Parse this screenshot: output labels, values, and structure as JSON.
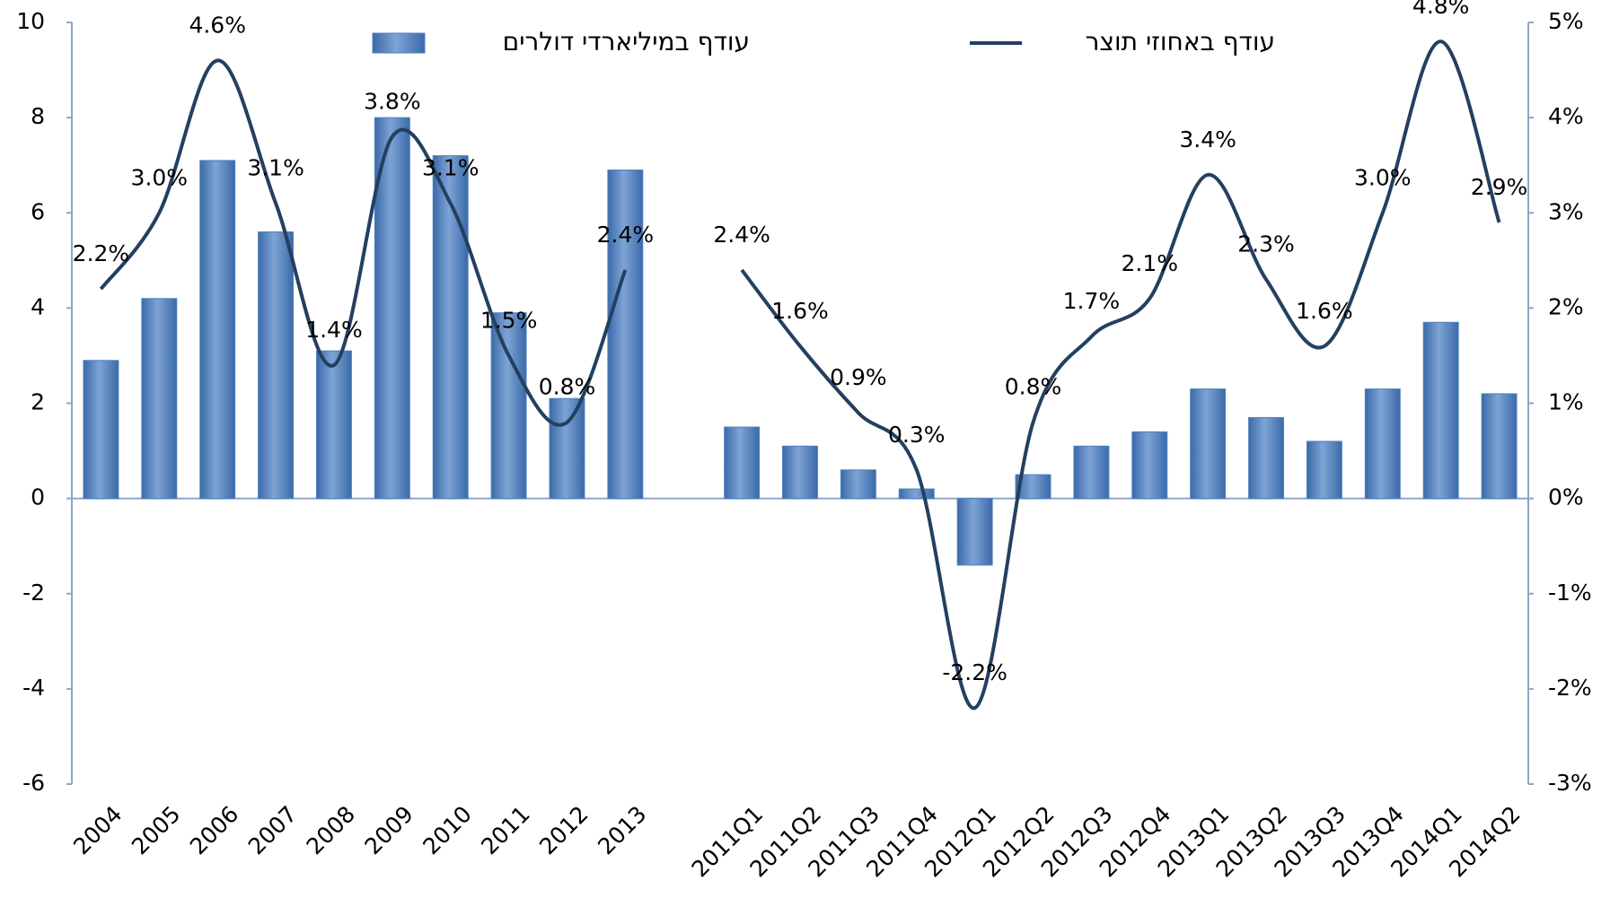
{
  "chart_data": {
    "type": "bar_line",
    "categories": [
      "2004",
      "2005",
      "2006",
      "2007",
      "2008",
      "2009",
      "2010",
      "2011",
      "2012",
      "2013",
      null,
      "2011Q1",
      "2011Q2",
      "2011Q3",
      "2011Q4",
      "2012Q1",
      "2012Q2",
      "2012Q3",
      "2012Q4",
      "2013Q1",
      "2013Q2",
      "2013Q3",
      "2013Q4",
      "2014Q1",
      "2014Q2"
    ],
    "series": [
      {
        "name": "עודף במיליארדי דולרים",
        "color": "#4f81bd",
        "type": "bar",
        "values": [
          2.9,
          4.2,
          7.1,
          5.6,
          3.1,
          8.0,
          7.2,
          3.9,
          2.1,
          6.9,
          null,
          1.5,
          1.1,
          0.6,
          0.2,
          -1.4,
          0.5,
          1.1,
          1.4,
          2.3,
          1.7,
          1.2,
          2.3,
          3.7,
          2.2
        ]
      },
      {
        "name": "עודף באחוזי תוצר",
        "color": "#243f60",
        "type": "line",
        "axis": "y2",
        "values": [
          2.2,
          3.0,
          4.6,
          3.1,
          1.4,
          3.8,
          3.1,
          1.5,
          0.8,
          2.4,
          null,
          2.4,
          1.6,
          0.9,
          0.3,
          -2.2,
          0.8,
          1.7,
          2.1,
          3.4,
          2.3,
          1.6,
          3.0,
          4.8,
          2.9
        ],
        "value_labels": [
          "2.2%",
          "3.0%",
          "4.6%",
          "3.1%",
          "1.4%",
          "3.8%",
          "3.1%",
          "1.5%",
          "0.8%",
          "2.4%",
          null,
          "2.4%",
          "1.6%",
          "0.9%",
          "0.3%",
          "-2.2%",
          "0.8%",
          "1.7%",
          "2.1%",
          "3.4%",
          "2.3%",
          "1.6%",
          "3.0%",
          "4.8%",
          "2.9%"
        ]
      }
    ],
    "ylim": [
      -6,
      10
    ],
    "yticks": [
      -6,
      -4,
      -2,
      0,
      2,
      4,
      6,
      8,
      10
    ],
    "y2lim": [
      -3,
      5
    ],
    "y2ticks": [
      {
        "value": -3,
        "label": "-3%"
      },
      {
        "value": -2,
        "label": "-2%"
      },
      {
        "value": -1,
        "label": "-1%"
      },
      {
        "value": 0,
        "label": "0%"
      },
      {
        "value": 1,
        "label": "1%"
      },
      {
        "value": 2,
        "label": "2%"
      },
      {
        "value": 3,
        "label": "3%"
      },
      {
        "value": 4,
        "label": "4%"
      },
      {
        "value": 5,
        "label": "5%"
      }
    ],
    "legend": "top"
  }
}
